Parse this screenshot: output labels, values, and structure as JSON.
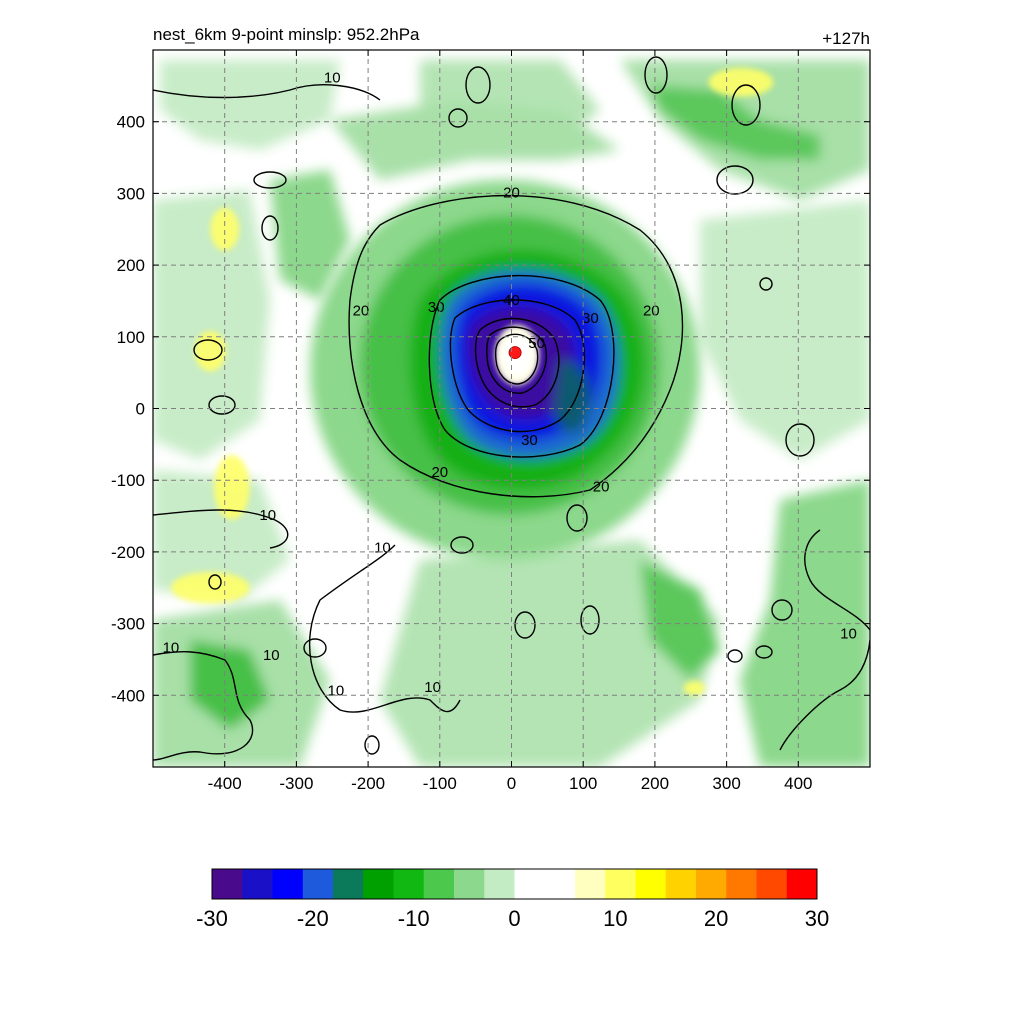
{
  "title_left": "nest_6km  9-point minslp: 952.2hPa",
  "title_right": "+127h",
  "chart_data": {
    "type": "heatmap",
    "title": "nest_6km  9-point minslp: 952.2hPa",
    "forecast_hour_label": "+127h",
    "xlim": [
      -500,
      500
    ],
    "ylim": [
      -500,
      500
    ],
    "x_ticks": [
      -400,
      -300,
      -200,
      -100,
      0,
      100,
      200,
      300,
      400
    ],
    "y_ticks": [
      400,
      300,
      200,
      100,
      0,
      -100,
      -200,
      -300,
      -400
    ],
    "x_tick_labels": [
      "-400",
      "-300",
      "-200",
      "-100",
      "0",
      "100",
      "200",
      "300",
      "400"
    ],
    "y_tick_labels": [
      "400",
      "300",
      "200",
      "100",
      "0",
      "-100",
      "-200",
      "-300",
      "-400"
    ],
    "grid": true,
    "colorbar": {
      "min": -30,
      "max": 30,
      "ticks": [
        -30,
        -20,
        -10,
        0,
        10,
        20,
        30
      ],
      "tick_labels": [
        "-30",
        "-20",
        "-10",
        "0",
        "10",
        "20",
        "30"
      ],
      "colors": [
        "#4a0a8c",
        "#1a10c8",
        "#0000ff",
        "#1e5adc",
        "#0a7a5a",
        "#00a000",
        "#12b812",
        "#4cc84c",
        "#8cd88c",
        "#c4ecc4",
        "#ffffff",
        "#ffffff",
        "#ffffc0",
        "#ffff60",
        "#ffff00",
        "#ffd200",
        "#ffaa00",
        "#ff7800",
        "#ff4800",
        "#ff0000"
      ]
    },
    "storm_center": {
      "x": 5,
      "y": 78
    },
    "shading_features": [
      {
        "kind": "green",
        "value": -5,
        "cx": 0,
        "cy": 60,
        "rx": 330,
        "ry": 330
      },
      {
        "kind": "green",
        "value": -10,
        "cx": 0,
        "cy": 60,
        "rx": 190,
        "ry": 185
      },
      {
        "kind": "blue",
        "value": -20,
        "cx": 5,
        "cy": 75,
        "rx": 110,
        "ry": 110
      },
      {
        "kind": "purple",
        "value": -28,
        "cx": 0,
        "cy": 75,
        "rx": 55,
        "ry": 58
      },
      {
        "kind": "yellow",
        "value": 6,
        "cx": -420,
        "cy": -250,
        "rx": 55,
        "ry": 22
      },
      {
        "kind": "yellow",
        "value": 6,
        "cx": -390,
        "cy": -110,
        "rx": 25,
        "ry": 45
      },
      {
        "kind": "yellow",
        "value": 6,
        "cx": -420,
        "cy": 80,
        "rx": 22,
        "ry": 28
      },
      {
        "kind": "yellow",
        "value": 6,
        "cx": -400,
        "cy": 250,
        "rx": 20,
        "ry": 30
      },
      {
        "kind": "yellow",
        "value": 6,
        "cx": 320,
        "cy": 455,
        "rx": 45,
        "ry": 20
      },
      {
        "kind": "yellow",
        "value": 5,
        "cx": 255,
        "cy": -390,
        "rx": 15,
        "ry": 10
      }
    ],
    "contour_labels": [
      {
        "text": "10",
        "x": -250,
        "y": 460
      },
      {
        "text": "20",
        "x": 0,
        "y": 300
      },
      {
        "text": "20",
        "x": -210,
        "y": 135
      },
      {
        "text": "20",
        "x": 195,
        "y": 135
      },
      {
        "text": "20",
        "x": -100,
        "y": -90
      },
      {
        "text": "20",
        "x": 125,
        "y": -110
      },
      {
        "text": "30",
        "x": -105,
        "y": 140
      },
      {
        "text": "30",
        "x": 110,
        "y": 125
      },
      {
        "text": "30",
        "x": 25,
        "y": -45
      },
      {
        "text": "40",
        "x": 0,
        "y": 150
      },
      {
        "text": "50",
        "x": 35,
        "y": 90
      },
      {
        "text": "10",
        "x": -340,
        "y": -150
      },
      {
        "text": "10",
        "x": -180,
        "y": -195
      },
      {
        "text": "10",
        "x": -475,
        "y": -335
      },
      {
        "text": "10",
        "x": -335,
        "y": -345
      },
      {
        "text": "10",
        "x": -245,
        "y": -395
      },
      {
        "text": "10",
        "x": -110,
        "y": -390
      },
      {
        "text": "10",
        "x": 470,
        "y": -315
      }
    ]
  }
}
